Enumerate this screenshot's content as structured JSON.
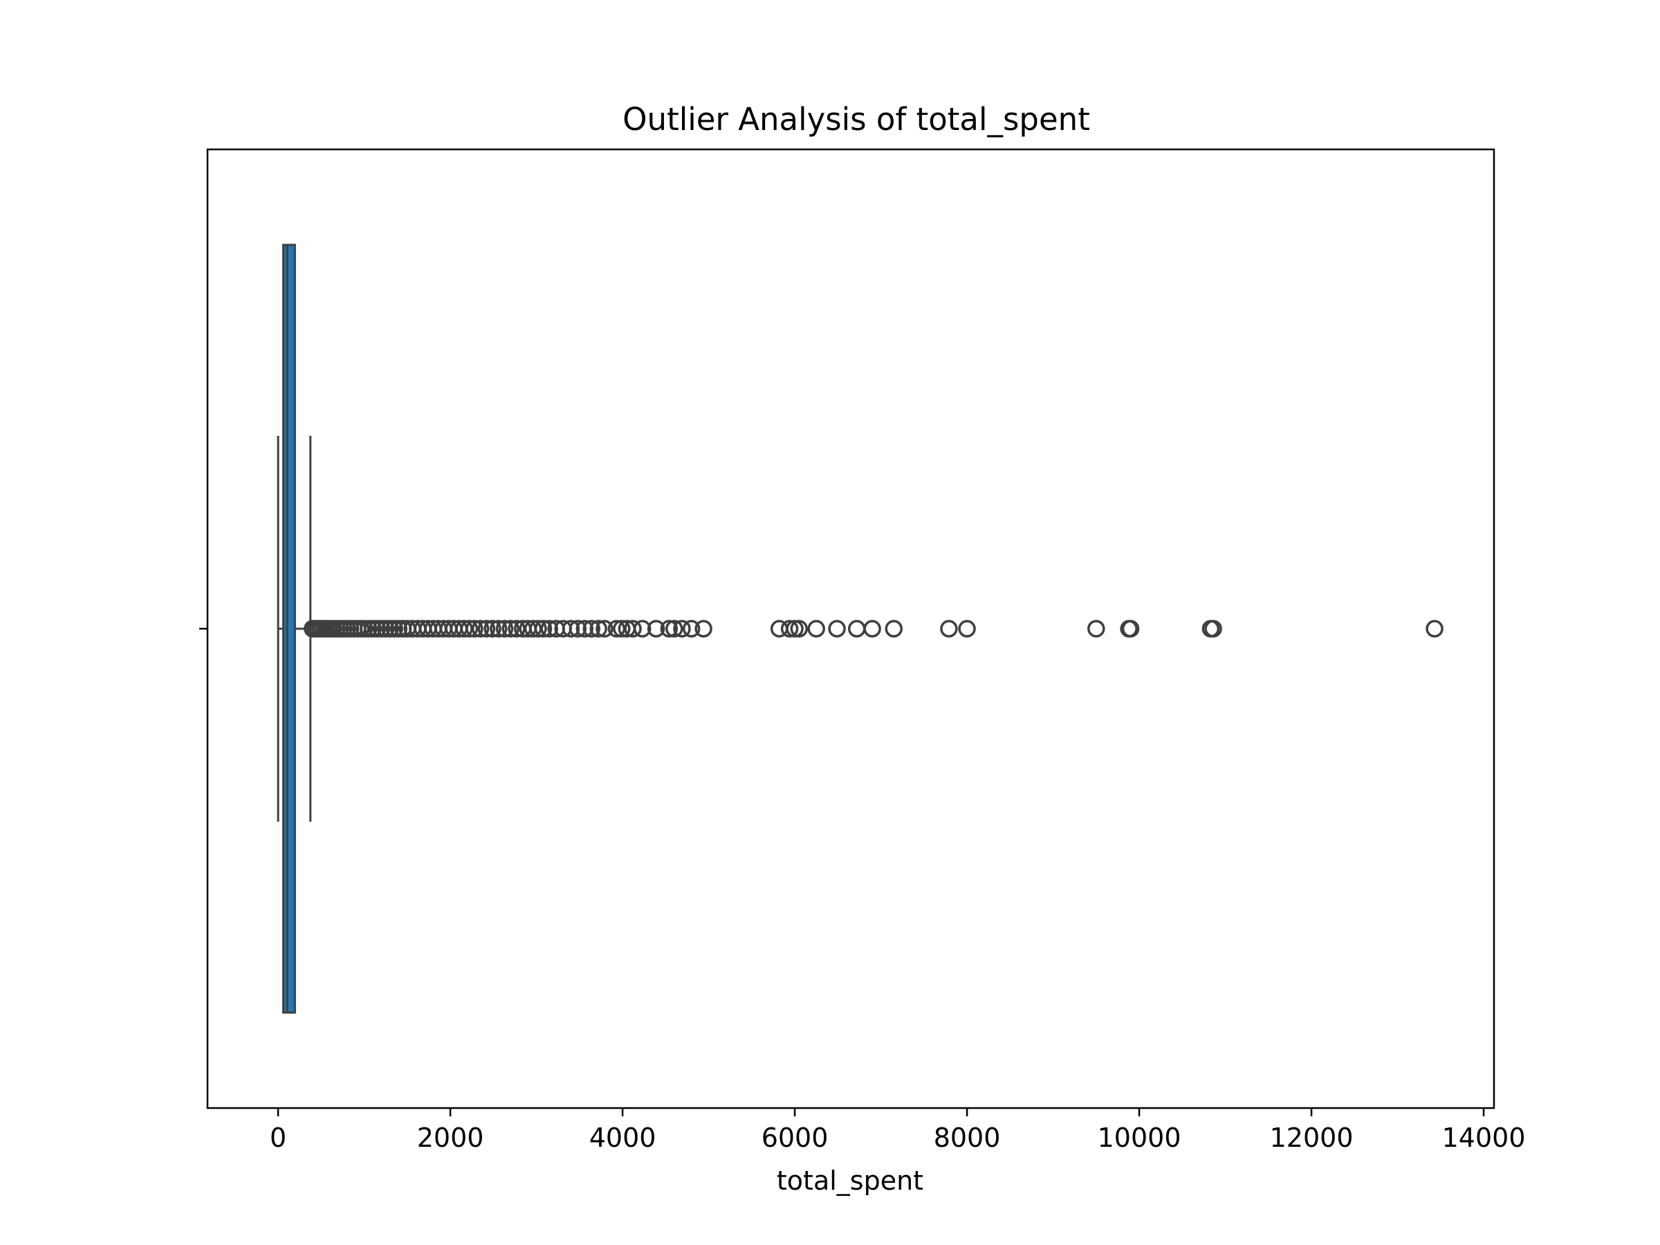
{
  "chart_data": {
    "type": "box",
    "orientation": "horizontal",
    "title": "Outlier Analysis of total_spent",
    "xlabel": "total_spent",
    "ylabel": "",
    "xlim": [
      -820,
      14120
    ],
    "xticks": [
      0,
      2000,
      4000,
      6000,
      8000,
      10000,
      12000,
      14000
    ],
    "xtick_labels": [
      "0",
      "2000",
      "4000",
      "6000",
      "8000",
      "10000",
      "12000",
      "14000"
    ],
    "grid": false,
    "box": {
      "whisker_low": 0,
      "q1": 60,
      "median": 105,
      "q3": 195,
      "whisker_high": 375
    },
    "outliers": [
      400,
      430,
      460,
      490,
      520,
      550,
      580,
      610,
      640,
      680,
      720,
      760,
      800,
      840,
      880,
      920,
      960,
      1000,
      1050,
      1100,
      1150,
      1200,
      1250,
      1300,
      1350,
      1400,
      1450,
      1500,
      1560,
      1620,
      1680,
      1740,
      1800,
      1860,
      1920,
      1980,
      2040,
      2100,
      2160,
      2220,
      2280,
      2350,
      2420,
      2490,
      2560,
      2630,
      2700,
      2770,
      2840,
      2900,
      2960,
      3020,
      3080,
      3150,
      3230,
      3310,
      3400,
      3480,
      3560,
      3640,
      3720,
      3790,
      3930,
      3990,
      4050,
      4120,
      4230,
      4390,
      4540,
      4600,
      4690,
      4800,
      4940,
      5820,
      5940,
      6000,
      6050,
      6250,
      6490,
      6720,
      6900,
      7150,
      7790,
      8000,
      9500,
      9880,
      9900,
      10830,
      10860,
      13430
    ],
    "colors": {
      "box_fill": "#1f77b4",
      "line": "#3f3f3f",
      "outlier_edge": "#3f3f3f"
    }
  }
}
